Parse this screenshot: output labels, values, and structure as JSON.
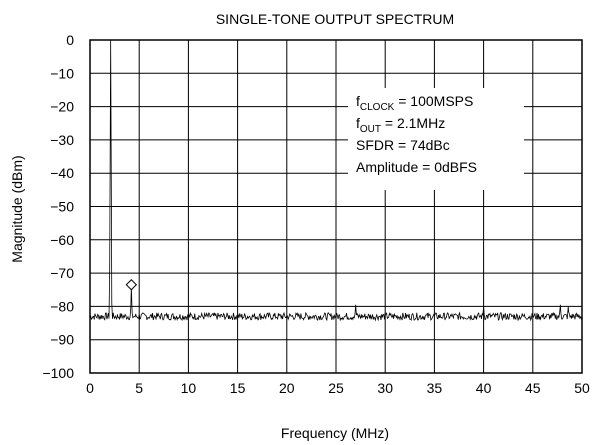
{
  "chart_data": {
    "type": "line",
    "title": "SINGLE-TONE OUTPUT SPECTRUM",
    "xlabel": "Frequency (MHz)",
    "ylabel": "Magnitude (dBm)",
    "xlim": [
      0,
      50
    ],
    "ylim": [
      -100,
      0
    ],
    "xticks": [
      0,
      5,
      10,
      15,
      20,
      25,
      30,
      35,
      40,
      45,
      50
    ],
    "yticks": [
      0,
      -10,
      -20,
      -30,
      -40,
      -50,
      -60,
      -70,
      -80,
      -90,
      -100
    ],
    "xtick_labels": [
      "0",
      "5",
      "10",
      "15",
      "20",
      "25",
      "30",
      "35",
      "40",
      "45",
      "50"
    ],
    "ytick_labels": [
      "0",
      "−10",
      "−20",
      "−30",
      "−40",
      "−50",
      "−60",
      "−70",
      "−80",
      "−90",
      "−100"
    ],
    "grid": true,
    "noise_floor_dBm": -83,
    "series": [
      {
        "color": "#000000",
        "peaks": [
          {
            "x": 2.1,
            "y": 0
          },
          {
            "x": 4.2,
            "y": -74
          },
          {
            "x": 27.0,
            "y": -79.5
          },
          {
            "x": 40.0,
            "y": -80
          },
          {
            "x": 47.8,
            "y": -79.5
          },
          {
            "x": 48.6,
            "y": -80
          }
        ]
      }
    ],
    "marker": {
      "x": 4.2,
      "y": -73.5,
      "shape": "diamond"
    },
    "annotation": {
      "lines": [
        {
          "main": "f",
          "sub": "CLOCK",
          "rest": " = 100MSPS"
        },
        {
          "main": "f",
          "sub": "OUT",
          "rest": " = 2.1MHz"
        },
        {
          "main": "SFDR = 74dBc",
          "sub": "",
          "rest": ""
        },
        {
          "main": "Amplitude = 0dBFS",
          "sub": "",
          "rest": ""
        }
      ]
    }
  }
}
